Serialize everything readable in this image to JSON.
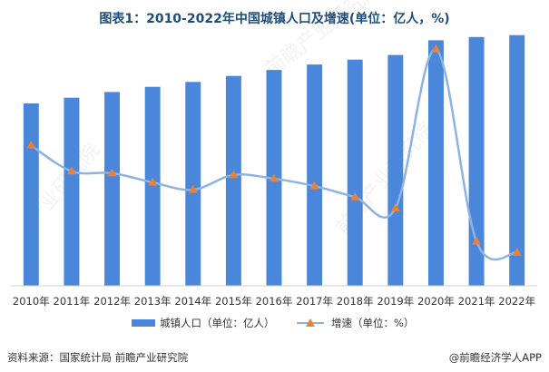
{
  "title": "图表1：2010-2022年中国城镇人口及增速(单位：亿人，%)",
  "footer": {
    "source": "资料来源：国家统计局 前瞻产业研究院",
    "credit": "@前瞻经济学人APP"
  },
  "colors": {
    "bar": "#4a86d9",
    "line": "#8db3e2",
    "marker": "#e8823a",
    "title": "#1f4e79"
  },
  "chart_data": {
    "type": "bar",
    "title": "图表1：2010-2022年中国城镇人口及增速(单位：亿人，%)",
    "categories": [
      "2010年",
      "2011年",
      "2012年",
      "2013年",
      "2014年",
      "2015年",
      "2016年",
      "2017年",
      "2018年",
      "2019年",
      "2020年",
      "2021年",
      "2022年"
    ],
    "series": [
      {
        "name": "城镇人口（单位：亿人）",
        "type": "bar",
        "axis": "left",
        "values": [
          6.7,
          6.91,
          7.12,
          7.31,
          7.49,
          7.71,
          7.93,
          8.13,
          8.31,
          8.48,
          9.02,
          9.14,
          9.21
        ]
      },
      {
        "name": "增速（单位：%）",
        "type": "line",
        "axis": "right",
        "smooth": true,
        "values": [
          3.8,
          3.1,
          3.05,
          2.8,
          2.6,
          3.0,
          2.9,
          2.7,
          2.4,
          2.1,
          6.4,
          1.2,
          0.9
        ]
      }
    ],
    "ylim_left": [
      0,
      10
    ],
    "ylim_right": [
      0,
      7
    ],
    "legend_position": "bottom",
    "grid": false
  }
}
